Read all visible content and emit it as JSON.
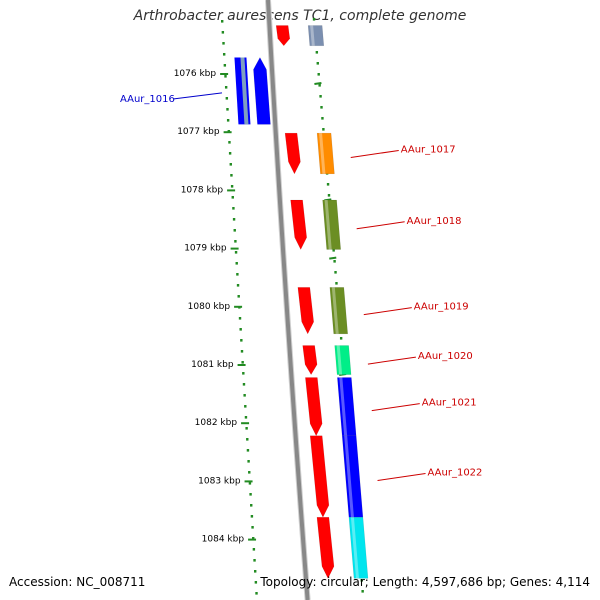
{
  "title": "Arthrobacter aurescens TC1, complete genome",
  "footer": {
    "accession": "Accession: NC_008711",
    "summary": "Topology: circular; Length: 4,597,686 bp; Genes: 4,114"
  },
  "ruler": {
    "ticks": [
      {
        "kbp": 1076,
        "label": "1076 kbp"
      },
      {
        "kbp": 1077,
        "label": "1077 kbp"
      },
      {
        "kbp": 1078,
        "label": "1078 kbp"
      },
      {
        "kbp": 1079,
        "label": "1079 kbp"
      },
      {
        "kbp": 1080,
        "label": "1080 kbp"
      },
      {
        "kbp": 1081,
        "label": "1081 kbp"
      },
      {
        "kbp": 1082,
        "label": "1082 kbp"
      },
      {
        "kbp": 1083,
        "label": "1083 kbp"
      },
      {
        "kbp": 1084,
        "label": "1084 kbp"
      }
    ]
  },
  "genes": [
    {
      "id": "AAur_1016",
      "label": "AAur_1016",
      "strand": "-",
      "start_kbp": 1075.75,
      "end_kbp": 1076.9,
      "cog_color": "#0000ff",
      "label_color": "#0000cc"
    },
    {
      "id": "AAur_1017",
      "label": "AAur_1017",
      "strand": "+",
      "start_kbp": 1077.05,
      "end_kbp": 1077.75,
      "cog_color": "#ff8c00",
      "label_color": "#cc0000"
    },
    {
      "id": "AAur_1018",
      "label": "AAur_1018",
      "strand": "+",
      "start_kbp": 1078.2,
      "end_kbp": 1079.05,
      "cog_color": "#6b8e23",
      "label_color": "#cc0000"
    },
    {
      "id": "AAur_1019",
      "label": "AAur_1019",
      "strand": "+",
      "start_kbp": 1079.7,
      "end_kbp": 1080.5,
      "cog_color": "#6b8e23",
      "label_color": "#cc0000"
    },
    {
      "id": "AAur_1020",
      "label": "AAur_1020",
      "strand": "+",
      "start_kbp": 1080.7,
      "end_kbp": 1081.2,
      "cog_color": "#00ee88",
      "label_color": "#cc0000"
    },
    {
      "id": "AAur_1021",
      "label": "AAur_1021",
      "strand": "+",
      "start_kbp": 1081.25,
      "end_kbp": 1082.25,
      "cog_color": "#0000ff",
      "label_color": "#cc0000"
    },
    {
      "id": "AAur_1022",
      "label": "AAur_1022",
      "strand": "+",
      "start_kbp": 1082.25,
      "end_kbp": 1083.65,
      "cog_color": "#0000ff",
      "label_color": "#cc0000"
    },
    {
      "id": "",
      "label": "",
      "strand": "+",
      "start_kbp": 1083.65,
      "end_kbp": 1084.7,
      "cog_color": "#00e5ee",
      "label_color": "#cc0000"
    },
    {
      "id": "",
      "label": "",
      "strand": "+",
      "start_kbp": 1075.2,
      "end_kbp": 1075.55,
      "cog_color": "#7b8fb0",
      "label_color": "#cc0000"
    }
  ],
  "colors": {
    "backbone": "#888888",
    "gene_strand_track": "#ff0000",
    "ruler_dots": "#228b22",
    "gene_label_forward": "#cc0000",
    "gene_label_reverse": "#0000cc"
  }
}
